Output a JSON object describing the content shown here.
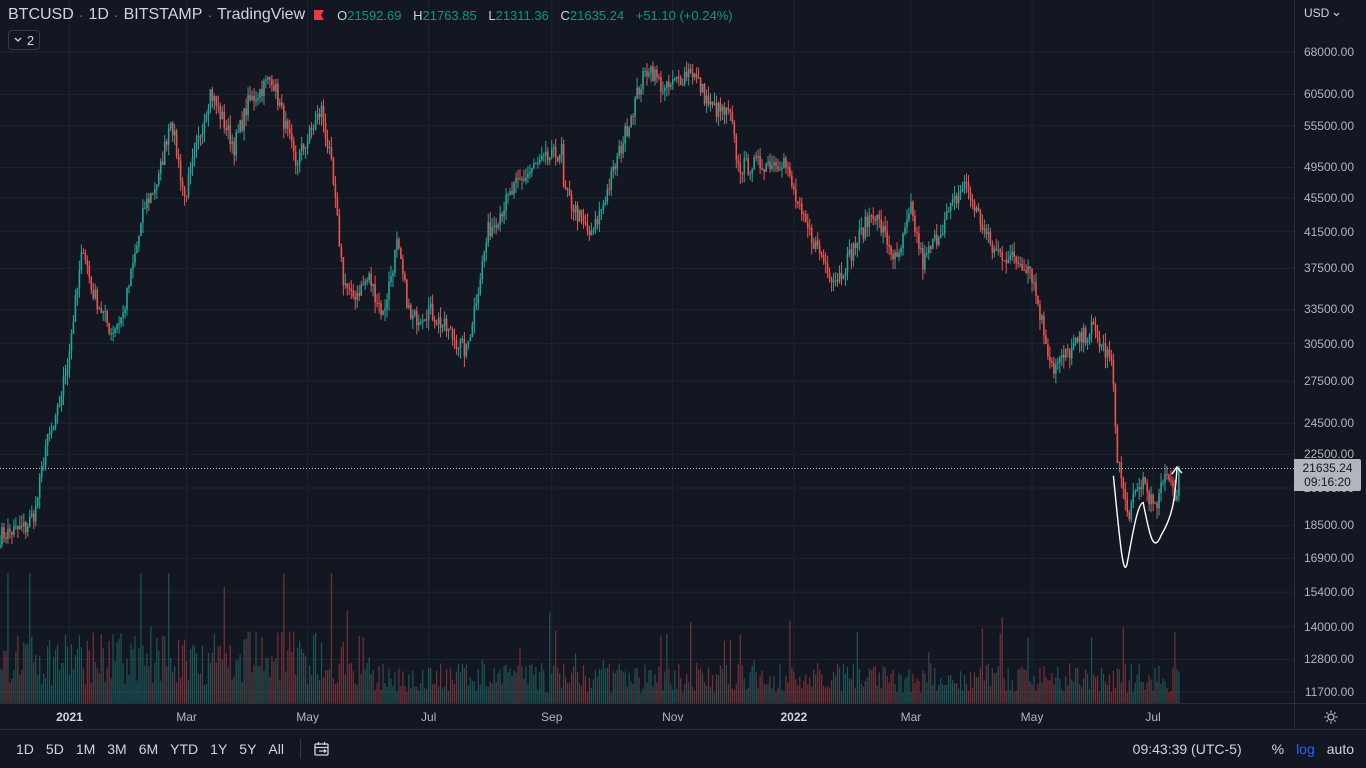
{
  "legend": {
    "symbol": "BTCUSD",
    "interval": "1D",
    "exchange": "BITSTAMP",
    "source": "TradingView",
    "o_label": "O",
    "o_value": "21592.69",
    "h_label": "H",
    "h_value": "21763.85",
    "l_label": "L",
    "l_value": "21311.36",
    "c_label": "C",
    "c_value": "21635.24",
    "change": "+51.10 (+0.24%)",
    "indicator_count": "2"
  },
  "currency": "USD",
  "last_price": {
    "price": "21635.24",
    "countdown": "09:16:20"
  },
  "bottom_bar": {
    "ranges": [
      "1D",
      "5D",
      "1M",
      "3M",
      "6M",
      "YTD",
      "1Y",
      "5Y",
      "All"
    ],
    "clock": "09:43:39 (UTC-5)",
    "percent": "%",
    "log": "log",
    "auto": "auto"
  },
  "colors": {
    "up": "#26a69a",
    "down": "#ef5350",
    "background": "#131722",
    "grid": "#1f2330",
    "accent": "#2962ff"
  },
  "chart_data": {
    "type": "candlestick",
    "scale": "log",
    "ylim": [
      11700,
      72000
    ],
    "y_ticks": [
      68000,
      60500,
      55500,
      49500,
      45500,
      41500,
      37500,
      33500,
      30500,
      27500,
      24500,
      22500,
      20500,
      18500,
      16900,
      15400,
      14000,
      12800,
      11700
    ],
    "y_tick_labels": [
      "68000.00",
      "60500.00",
      "55500.00",
      "49500.00",
      "45500.00",
      "41500.00",
      "37500.00",
      "33500.00",
      "30500.00",
      "27500.00",
      "24500.00",
      "22500.00",
      "20500.00",
      "18500.00",
      "16900.00",
      "15400.00",
      "14000.00",
      "12800.00",
      "11700.00"
    ],
    "x_ticks": [
      {
        "date": "2021-01-01",
        "label": "2021",
        "bold": true
      },
      {
        "date": "2021-03-01",
        "label": "Mar"
      },
      {
        "date": "2021-05-01",
        "label": "May"
      },
      {
        "date": "2021-07-01",
        "label": "Jul"
      },
      {
        "date": "2021-09-01",
        "label": "Sep"
      },
      {
        "date": "2021-11-01",
        "label": "Nov"
      },
      {
        "date": "2022-01-01",
        "label": "2022",
        "bold": true
      },
      {
        "date": "2022-03-01",
        "label": "Mar"
      },
      {
        "date": "2022-05-01",
        "label": "May"
      },
      {
        "date": "2022-07-01",
        "label": "Jul"
      }
    ],
    "x_range": [
      "2020-11-27",
      "2022-09-10"
    ],
    "approx_close_path": [
      [
        "2020-11-27",
        18000
      ],
      [
        "2020-12-10",
        18400
      ],
      [
        "2020-12-15",
        19300
      ],
      [
        "2020-12-20",
        23000
      ],
      [
        "2020-12-25",
        24500
      ],
      [
        "2020-12-31",
        29000
      ],
      [
        "2021-01-08",
        40000
      ],
      [
        "2021-01-12",
        35500
      ],
      [
        "2021-01-22",
        31500
      ],
      [
        "2021-01-28",
        33000
      ],
      [
        "2021-02-08",
        44500
      ],
      [
        "2021-02-15",
        48000
      ],
      [
        "2021-02-21",
        57000
      ],
      [
        "2021-02-28",
        45500
      ],
      [
        "2021-03-13",
        61000
      ],
      [
        "2021-03-25",
        52500
      ],
      [
        "2021-04-01",
        59000
      ],
      [
        "2021-04-13",
        63500
      ],
      [
        "2021-04-25",
        50000
      ],
      [
        "2021-05-08",
        58000
      ],
      [
        "2021-05-13",
        49500
      ],
      [
        "2021-05-19",
        36500
      ],
      [
        "2021-05-23",
        34500
      ],
      [
        "2021-06-01",
        36500
      ],
      [
        "2021-06-08",
        33000
      ],
      [
        "2021-06-15",
        40000
      ],
      [
        "2021-06-22",
        32500
      ],
      [
        "2021-07-01",
        33500
      ],
      [
        "2021-07-20",
        29800
      ],
      [
        "2021-07-31",
        41500
      ],
      [
        "2021-08-14",
        47000
      ],
      [
        "2021-08-23",
        49500
      ],
      [
        "2021-09-06",
        51800
      ],
      [
        "2021-09-07",
        46500
      ],
      [
        "2021-09-21",
        40800
      ],
      [
        "2021-10-01",
        48000
      ],
      [
        "2021-10-15",
        61500
      ],
      [
        "2021-10-20",
        65500
      ],
      [
        "2021-10-28",
        61000
      ],
      [
        "2021-11-10",
        65000
      ],
      [
        "2021-11-20",
        58500
      ],
      [
        "2021-11-30",
        57000
      ],
      [
        "2021-12-04",
        49500
      ],
      [
        "2021-12-27",
        50500
      ],
      [
        "2022-01-05",
        43000
      ],
      [
        "2022-01-21",
        36500
      ],
      [
        "2022-01-24",
        36800
      ],
      [
        "2022-02-10",
        44000
      ],
      [
        "2022-02-22",
        38000
      ],
      [
        "2022-03-01",
        44000
      ],
      [
        "2022-03-07",
        38000
      ],
      [
        "2022-03-28",
        47500
      ],
      [
        "2022-04-11",
        39500
      ],
      [
        "2022-04-30",
        37700
      ],
      [
        "2022-05-09",
        30000
      ],
      [
        "2022-05-12",
        28500
      ],
      [
        "2022-05-31",
        31800
      ],
      [
        "2022-06-10",
        29000
      ],
      [
        "2022-06-13",
        22500
      ],
      [
        "2022-06-18",
        19000
      ],
      [
        "2022-06-26",
        21000
      ],
      [
        "2022-07-02",
        19200
      ],
      [
        "2022-07-08",
        21600
      ],
      [
        "2022-07-13",
        20000
      ],
      [
        "2022-07-14",
        21635
      ]
    ],
    "last_price": 21635.24,
    "annotation": "hand-drawn white curve near the recent bottom"
  }
}
